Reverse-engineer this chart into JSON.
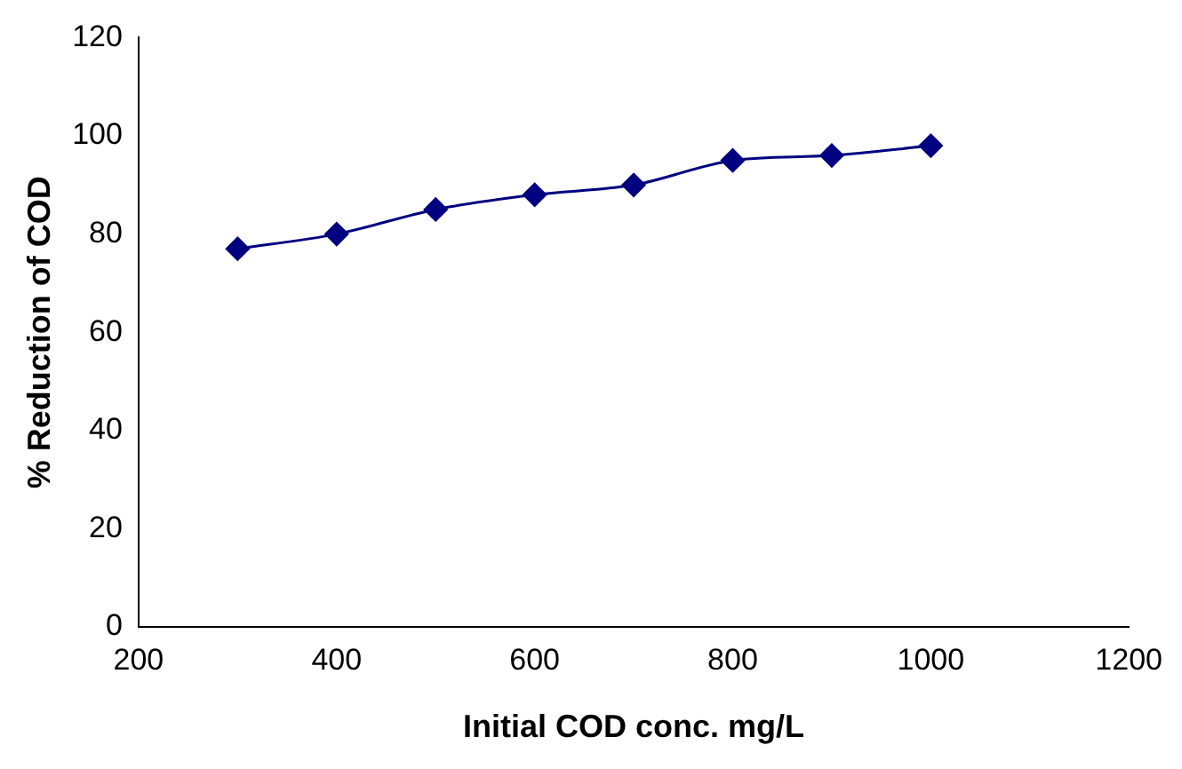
{
  "chart_data": {
    "type": "line",
    "xlabel": "Initial COD conc. mg/L",
    "ylabel": "% Reduction of COD",
    "x": [
      300,
      400,
      500,
      600,
      700,
      800,
      900,
      1000
    ],
    "series": [
      {
        "color": "#000080",
        "values": [
          77,
          80,
          85,
          88,
          90,
          95,
          96,
          98
        ]
      }
    ],
    "xlim": [
      200,
      1200
    ],
    "xticks": [
      200,
      400,
      600,
      800,
      1000,
      1200
    ],
    "ylim": [
      0,
      120
    ],
    "yticks": [
      0,
      20,
      40,
      60,
      80,
      100,
      120
    ],
    "grid": false,
    "legend": false,
    "marker": "diamond",
    "line_style": "solid"
  }
}
